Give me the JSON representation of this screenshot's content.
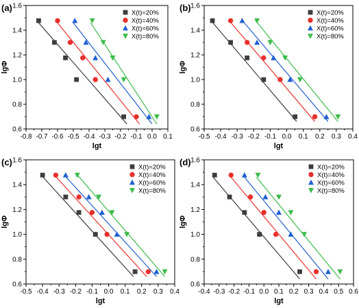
{
  "colors": {
    "s20": "#3d3d3d",
    "s40": "#e8312c",
    "s60": "#1f5fd0",
    "s80": "#3cbb4a"
  },
  "chart_data": [
    {
      "type": "scatter",
      "panel": "(a)",
      "xlabel": "lgt",
      "ylabel": "lgΦ",
      "xlim": [
        -0.8,
        0.1
      ],
      "ylim": [
        0.6,
        1.6
      ],
      "xticks": [
        "-0.8",
        "-0.7",
        "-0.6",
        "-0.5",
        "-0.4",
        "-0.3",
        "-0.2",
        "-0.1",
        "0.0",
        "0.1"
      ],
      "yticks": [
        "0.6",
        "0.8",
        "1.0",
        "1.2",
        "1.4",
        "1.6"
      ],
      "legend_position": "top-right",
      "series": [
        {
          "name": "X(t)=20%",
          "marker": "square",
          "color": "#3d3d3d",
          "x": [
            -0.72,
            -0.62,
            -0.55,
            -0.48,
            -0.18
          ],
          "y": [
            1.477,
            1.301,
            1.176,
            1.0,
            0.699
          ],
          "fit": [
            [
              -0.72,
              1.46
            ],
            [
              -0.16,
              0.64
            ]
          ]
        },
        {
          "name": "X(t)=40%",
          "marker": "circle",
          "color": "#e8312c",
          "x": [
            -0.6,
            -0.52,
            -0.44,
            -0.36,
            -0.1
          ],
          "y": [
            1.477,
            1.301,
            1.176,
            1.0,
            0.699
          ],
          "fit": [
            [
              -0.6,
              1.46
            ],
            [
              -0.08,
              0.64
            ]
          ]
        },
        {
          "name": "X(t)=60%",
          "marker": "triangle-up",
          "color": "#1f5fd0",
          "x": [
            -0.49,
            -0.42,
            -0.36,
            -0.28,
            -0.02
          ],
          "y": [
            1.477,
            1.301,
            1.176,
            1.0,
            0.699
          ],
          "fit": [
            [
              -0.5,
              1.46
            ],
            [
              0.0,
              0.64
            ]
          ]
        },
        {
          "name": "X(t)=80%",
          "marker": "triangle-down",
          "color": "#3cbb4a",
          "x": [
            -0.38,
            -0.31,
            -0.25,
            -0.18,
            0.03
          ],
          "y": [
            1.477,
            1.301,
            1.176,
            1.0,
            0.699
          ],
          "fit": [
            [
              -0.39,
              1.46
            ],
            [
              0.03,
              0.64
            ]
          ]
        }
      ]
    },
    {
      "type": "scatter",
      "panel": "(b)",
      "xlabel": "lgt",
      "ylabel": "lgΦ",
      "xlim": [
        -0.5,
        0.4
      ],
      "ylim": [
        0.6,
        1.6
      ],
      "xticks": [
        "-0.5",
        "-0.4",
        "-0.3",
        "-0.2",
        "-0.1",
        "0.0",
        "0.1",
        "0.2",
        "0.3",
        "0.4"
      ],
      "yticks": [
        "0.6",
        "0.8",
        "1.0",
        "1.2",
        "1.4",
        "1.6"
      ],
      "legend_position": "top-right",
      "series": [
        {
          "name": "X(t)=20%",
          "marker": "square",
          "color": "#3d3d3d",
          "x": [
            -0.45,
            -0.34,
            -0.24,
            -0.14,
            0.05
          ],
          "y": [
            1.477,
            1.301,
            1.176,
            1.0,
            0.699
          ],
          "fit": [
            [
              -0.46,
              1.48
            ],
            [
              0.06,
              0.66
            ]
          ]
        },
        {
          "name": "X(t)=40%",
          "marker": "circle",
          "color": "#e8312c",
          "x": [
            -0.34,
            -0.24,
            -0.14,
            -0.04,
            0.17
          ],
          "y": [
            1.477,
            1.301,
            1.176,
            1.0,
            0.699
          ],
          "fit": [
            [
              -0.35,
              1.48
            ],
            [
              0.17,
              0.66
            ]
          ]
        },
        {
          "name": "X(t)=60%",
          "marker": "triangle-up",
          "color": "#1f5fd0",
          "x": [
            -0.27,
            -0.18,
            -0.08,
            0.02,
            0.24
          ],
          "y": [
            1.477,
            1.301,
            1.176,
            1.0,
            0.699
          ],
          "fit": [
            [
              -0.27,
              1.48
            ],
            [
              0.25,
              0.66
            ]
          ]
        },
        {
          "name": "X(t)=80%",
          "marker": "triangle-down",
          "color": "#3cbb4a",
          "x": [
            -0.18,
            -0.1,
            -0.01,
            0.08,
            0.31
          ],
          "y": [
            1.477,
            1.301,
            1.176,
            1.0,
            0.699
          ],
          "fit": [
            [
              -0.19,
              1.48
            ],
            [
              0.31,
              0.66
            ]
          ]
        }
      ]
    },
    {
      "type": "scatter",
      "panel": "(c)",
      "xlabel": "lgt",
      "ylabel": "lgΦ",
      "xlim": [
        -0.5,
        0.4
      ],
      "ylim": [
        0.6,
        1.6
      ],
      "xticks": [
        "-0.5",
        "-0.4",
        "-0.3",
        "-0.2",
        "-0.1",
        "0.0",
        "0.1",
        "0.2",
        "0.3",
        "0.4"
      ],
      "yticks": [
        "0.6",
        "0.8",
        "1.0",
        "1.2",
        "1.4",
        "1.6"
      ],
      "legend_position": "top-right",
      "series": [
        {
          "name": "X(t)=20%",
          "marker": "square",
          "color": "#3d3d3d",
          "x": [
            -0.4,
            -0.26,
            -0.18,
            -0.08,
            0.16
          ],
          "y": [
            1.477,
            1.301,
            1.176,
            1.0,
            0.699
          ],
          "fit": [
            [
              -0.41,
              1.48
            ],
            [
              0.15,
              0.66
            ]
          ]
        },
        {
          "name": "X(t)=40%",
          "marker": "circle",
          "color": "#e8312c",
          "x": [
            -0.32,
            -0.18,
            -0.1,
            -0.01,
            0.24
          ],
          "y": [
            1.477,
            1.301,
            1.176,
            1.0,
            0.699
          ],
          "fit": [
            [
              -0.33,
              1.48
            ],
            [
              0.23,
              0.66
            ]
          ]
        },
        {
          "name": "X(t)=60%",
          "marker": "triangle-up",
          "color": "#1f5fd0",
          "x": [
            -0.26,
            -0.12,
            -0.04,
            0.05,
            0.29
          ],
          "y": [
            1.477,
            1.301,
            1.176,
            1.0,
            0.699
          ],
          "fit": [
            [
              -0.27,
              1.48
            ],
            [
              0.29,
              0.66
            ]
          ]
        },
        {
          "name": "X(t)=80%",
          "marker": "triangle-down",
          "color": "#3cbb4a",
          "x": [
            -0.19,
            -0.06,
            0.02,
            0.11,
            0.34
          ],
          "y": [
            1.477,
            1.301,
            1.176,
            1.0,
            0.699
          ],
          "fit": [
            [
              -0.19,
              1.48
            ],
            [
              0.34,
              0.66
            ]
          ]
        }
      ]
    },
    {
      "type": "scatter",
      "panel": "(d)",
      "xlabel": "lgt",
      "ylabel": "lgΦ",
      "xlim": [
        -0.4,
        0.6
      ],
      "ylim": [
        0.6,
        1.6
      ],
      "xticks": [
        "-0.4",
        "-0.3",
        "-0.2",
        "-0.1",
        "0.0",
        "0.1",
        "0.2",
        "0.3",
        "0.4",
        "0.5",
        "0.6"
      ],
      "yticks": [
        "0.6",
        "0.8",
        "1.0",
        "1.2",
        "1.4",
        "1.6"
      ],
      "legend_position": "top-right",
      "series": [
        {
          "name": "X(t)=20%",
          "marker": "square",
          "color": "#3d3d3d",
          "x": [
            -0.33,
            -0.23,
            -0.13,
            -0.03,
            0.24
          ],
          "y": [
            1.477,
            1.301,
            1.176,
            1.0,
            0.699
          ],
          "fit": [
            [
              -0.34,
              1.46
            ],
            [
              0.24,
              0.64
            ]
          ]
        },
        {
          "name": "X(t)=40%",
          "marker": "circle",
          "color": "#e8312c",
          "x": [
            -0.22,
            -0.09,
            0.0,
            0.08,
            0.35
          ],
          "y": [
            1.477,
            1.301,
            1.176,
            1.0,
            0.699
          ],
          "fit": [
            [
              -0.22,
              1.46
            ],
            [
              0.35,
              0.64
            ]
          ]
        },
        {
          "name": "X(t)=60%",
          "marker": "triangle-up",
          "color": "#1f5fd0",
          "x": [
            -0.13,
            0.01,
            0.1,
            0.18,
            0.43
          ],
          "y": [
            1.477,
            1.301,
            1.176,
            1.0,
            0.699
          ],
          "fit": [
            [
              -0.13,
              1.46
            ],
            [
              0.43,
              0.64
            ]
          ]
        },
        {
          "name": "X(t)=80%",
          "marker": "triangle-down",
          "color": "#3cbb4a",
          "x": [
            -0.04,
            0.1,
            0.18,
            0.27,
            0.51
          ],
          "y": [
            1.477,
            1.301,
            1.176,
            1.0,
            0.699
          ],
          "fit": [
            [
              -0.05,
              1.46
            ],
            [
              0.51,
              0.64
            ]
          ]
        }
      ]
    }
  ]
}
